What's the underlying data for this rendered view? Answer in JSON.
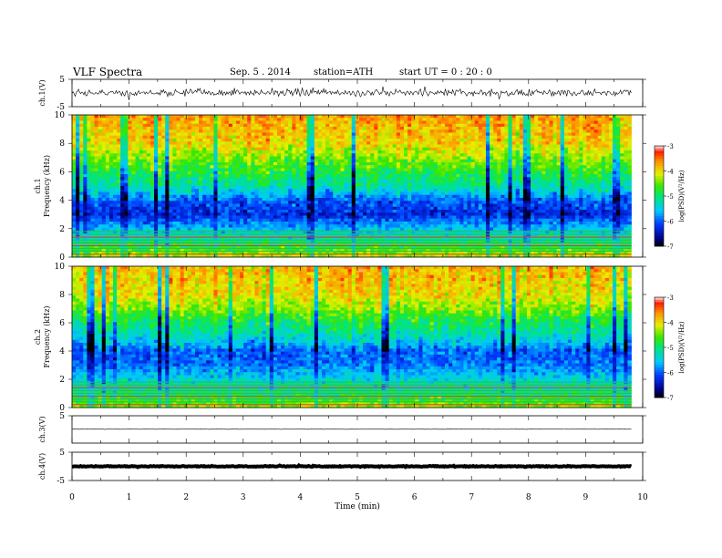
{
  "header": {
    "title": "VLF  Spectra",
    "date": "Sep. 5  . 2014",
    "station": "station=ATH",
    "start": "start  UT  =   0  : 20 : 0"
  },
  "chart_data": [
    {
      "type": "line",
      "name": "waveform ch.1",
      "ylabel": "ch.1(V)",
      "ylim": [
        -5,
        5
      ],
      "yticks": [
        "5",
        "-5"
      ],
      "xlim": [
        0,
        10
      ],
      "x_end": 9.8,
      "approx_level": 0.1,
      "approx_amplitude": 1.2
    },
    {
      "type": "heatmap",
      "name": "spectrogram ch.1",
      "ylabel": "ch.1\nFrequency (kHz)",
      "ylim": [
        0,
        10
      ],
      "yticks": [
        "0",
        "2",
        "4",
        "6",
        "8",
        "10"
      ],
      "xlim": [
        0,
        10
      ],
      "x_end": 9.8,
      "approx_profile_khz_to_logpsd": [
        [
          0.0,
          -4.2
        ],
        [
          1.0,
          -5.0
        ],
        [
          2.0,
          -5.6
        ],
        [
          3.0,
          -6.3
        ],
        [
          4.0,
          -6.0
        ],
        [
          5.0,
          -5.2
        ],
        [
          6.0,
          -4.8
        ],
        [
          7.0,
          -4.4
        ],
        [
          8.0,
          -4.0
        ],
        [
          10.0,
          -3.7
        ]
      ],
      "colorbar": {
        "label": "log(PSD)(V²/Hz)",
        "range": [
          -7,
          -3
        ],
        "ticks": [
          "-3",
          "-4",
          "-5",
          "-6",
          "-7"
        ]
      }
    },
    {
      "type": "heatmap",
      "name": "spectrogram ch.2",
      "ylabel": "ch.2\nFrequency (kHz)",
      "ylim": [
        0,
        10
      ],
      "yticks": [
        "0",
        "2",
        "4",
        "6",
        "8",
        "10"
      ],
      "xlim": [
        0,
        10
      ],
      "x_end": 9.8,
      "approx_profile_khz_to_logpsd": [
        [
          0.0,
          -4.3
        ],
        [
          1.0,
          -5.0
        ],
        [
          2.0,
          -5.4
        ],
        [
          3.0,
          -5.9
        ],
        [
          4.0,
          -6.0
        ],
        [
          5.0,
          -5.3
        ],
        [
          6.0,
          -4.9
        ],
        [
          7.0,
          -4.4
        ],
        [
          8.0,
          -4.0
        ],
        [
          10.0,
          -3.8
        ]
      ],
      "colorbar": {
        "label": "log(PSD)(V²/Hz)",
        "range": [
          -7,
          -3
        ],
        "ticks": [
          "-3",
          "-4",
          "-5",
          "-6",
          "-7"
        ]
      }
    },
    {
      "type": "line",
      "name": "waveform ch.3",
      "ylabel": "ch.3(V)",
      "ylim": [
        -5,
        5
      ],
      "yticks": [
        "5"
      ],
      "xlim": [
        0,
        10
      ],
      "x_end": 9.8,
      "approx_level": 0.1,
      "approx_amplitude": 0.05
    },
    {
      "type": "line",
      "name": "waveform ch.4",
      "ylabel": "ch.4(V)",
      "ylim": [
        -5,
        5
      ],
      "yticks": [
        "5",
        "-5"
      ],
      "xlim": [
        0,
        10
      ],
      "x_end": 9.8,
      "approx_level": 0.0,
      "approx_amplitude": 0.15
    }
  ],
  "xaxis": {
    "label": "Time  (min)",
    "ticks": [
      "0",
      "1",
      "2",
      "3",
      "4",
      "5",
      "6",
      "7",
      "8",
      "9",
      "10"
    ]
  }
}
